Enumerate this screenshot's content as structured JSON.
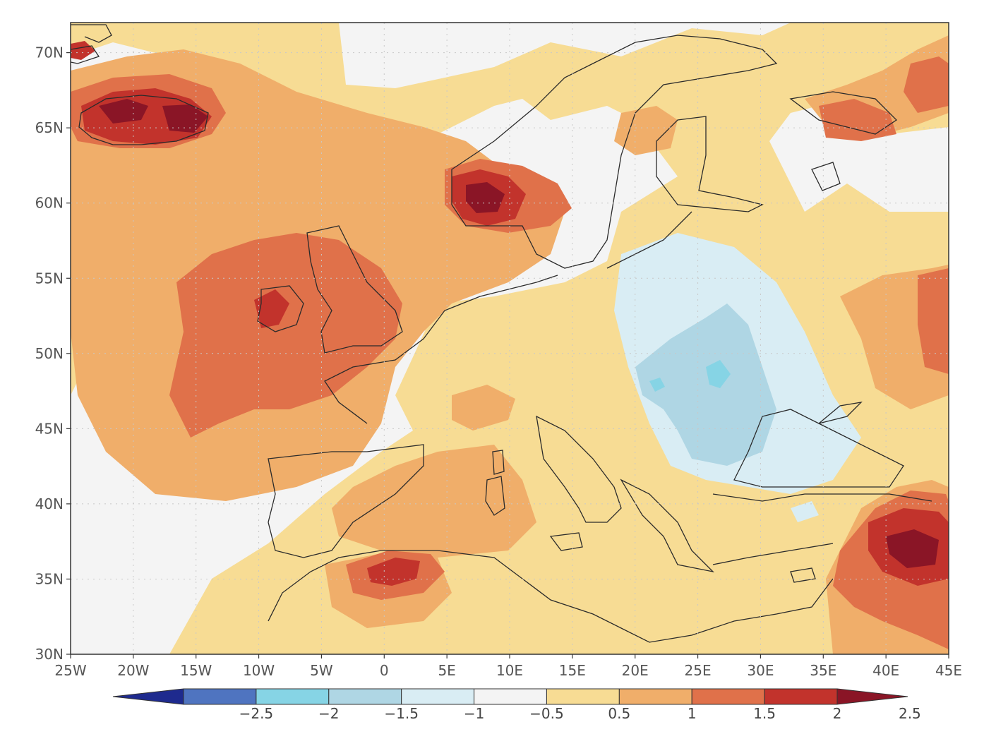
{
  "map": {
    "lat_ticks": [
      "70N",
      "65N",
      "60N",
      "55N",
      "50N",
      "45N",
      "40N",
      "35N",
      "30N"
    ],
    "lon_ticks": [
      "25W",
      "20W",
      "15W",
      "10W",
      "5W",
      "0",
      "5E",
      "10E",
      "15E",
      "20E",
      "25E",
      "30E",
      "35E",
      "40E",
      "45E"
    ],
    "extent": {
      "lon_min": -25,
      "lon_max": 45,
      "lat_min": 30,
      "lat_max": 72
    }
  },
  "colorbar": {
    "labels": [
      "-2.5",
      "-2",
      "-1.5",
      "-1",
      "-0.5",
      "0.5",
      "1",
      "1.5",
      "2",
      "2.5"
    ],
    "colors": [
      "#1e2a8e",
      "#4f74c0",
      "#86d4e5",
      "#afd6e4",
      "#d9edf4",
      "#f4f4f4",
      "#f7dc94",
      "#f0ae6a",
      "#e0714a",
      "#c2332c",
      "#8a1526"
    ]
  }
}
